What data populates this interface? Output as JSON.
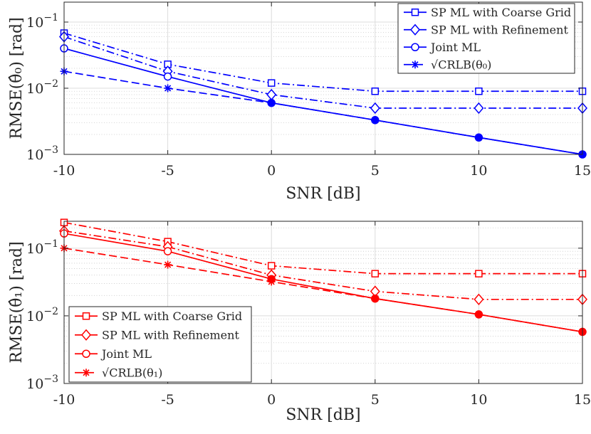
{
  "chart_data": [
    {
      "type": "line",
      "color": "#0000ff",
      "xlabel": "SNR [dB]",
      "ylabel": "RMSE(θ̂₀) [rad]",
      "xlim": [
        -10,
        15
      ],
      "ylim": [
        0.001,
        0.2
      ],
      "yscale": "log",
      "grid": true,
      "legend_position": "top-right",
      "x_ticks": [
        "-10",
        "-5",
        "0",
        "5",
        "10",
        "15"
      ],
      "y_ticks": [
        {
          "base": "10",
          "exp": "−3"
        },
        {
          "base": "10",
          "exp": "−2"
        },
        {
          "base": "10",
          "exp": "−1"
        }
      ],
      "x": [
        -10,
        -5,
        0,
        5,
        10,
        15
      ],
      "series": [
        {
          "name": "SP ML with Coarse Grid",
          "marker": "square",
          "dash": "dashdot",
          "values": [
            0.068,
            0.023,
            0.012,
            0.009,
            0.009,
            0.009
          ]
        },
        {
          "name": "SP ML with Refinement",
          "marker": "diamond",
          "dash": "dashdot",
          "values": [
            0.06,
            0.018,
            0.008,
            0.005,
            0.005,
            0.005
          ]
        },
        {
          "name": "Joint ML",
          "marker": "circle",
          "dash": "solid",
          "values": [
            0.04,
            0.015,
            0.006,
            0.0033,
            0.0018,
            0.001
          ]
        },
        {
          "name": "√CRLB(θ₀)",
          "marker": "star",
          "dash": "dashed",
          "values": [
            0.018,
            0.01,
            0.006,
            0.0033,
            0.0018,
            0.001
          ]
        }
      ]
    },
    {
      "type": "line",
      "color": "#ff0000",
      "xlabel": "SNR [dB]",
      "ylabel": "RMSE(θ̂₁) [rad]",
      "xlim": [
        -10,
        15
      ],
      "ylim": [
        0.001,
        0.25
      ],
      "yscale": "log",
      "grid": true,
      "legend_position": "bottom-left",
      "x_ticks": [
        "-10",
        "-5",
        "0",
        "5",
        "10",
        "15"
      ],
      "y_ticks": [
        {
          "base": "10",
          "exp": "−3"
        },
        {
          "base": "10",
          "exp": "−2"
        },
        {
          "base": "10",
          "exp": "−1"
        }
      ],
      "x": [
        -10,
        -5,
        0,
        5,
        10,
        15
      ],
      "series": [
        {
          "name": "SP ML with Coarse Grid",
          "marker": "square",
          "dash": "dashdot",
          "values": [
            0.24,
            0.125,
            0.055,
            0.042,
            0.042,
            0.042
          ]
        },
        {
          "name": "SP ML with Refinement",
          "marker": "diamond",
          "dash": "dashdot",
          "values": [
            0.18,
            0.105,
            0.04,
            0.023,
            0.0175,
            0.0175
          ]
        },
        {
          "name": "Joint ML",
          "marker": "circle",
          "dash": "solid",
          "values": [
            0.165,
            0.09,
            0.035,
            0.018,
            0.0105,
            0.0058
          ]
        },
        {
          "name": "√CRLB(θ₁)",
          "marker": "star",
          "dash": "dashed",
          "values": [
            0.1,
            0.057,
            0.032,
            0.018,
            0.0105,
            0.0058
          ]
        }
      ]
    }
  ]
}
